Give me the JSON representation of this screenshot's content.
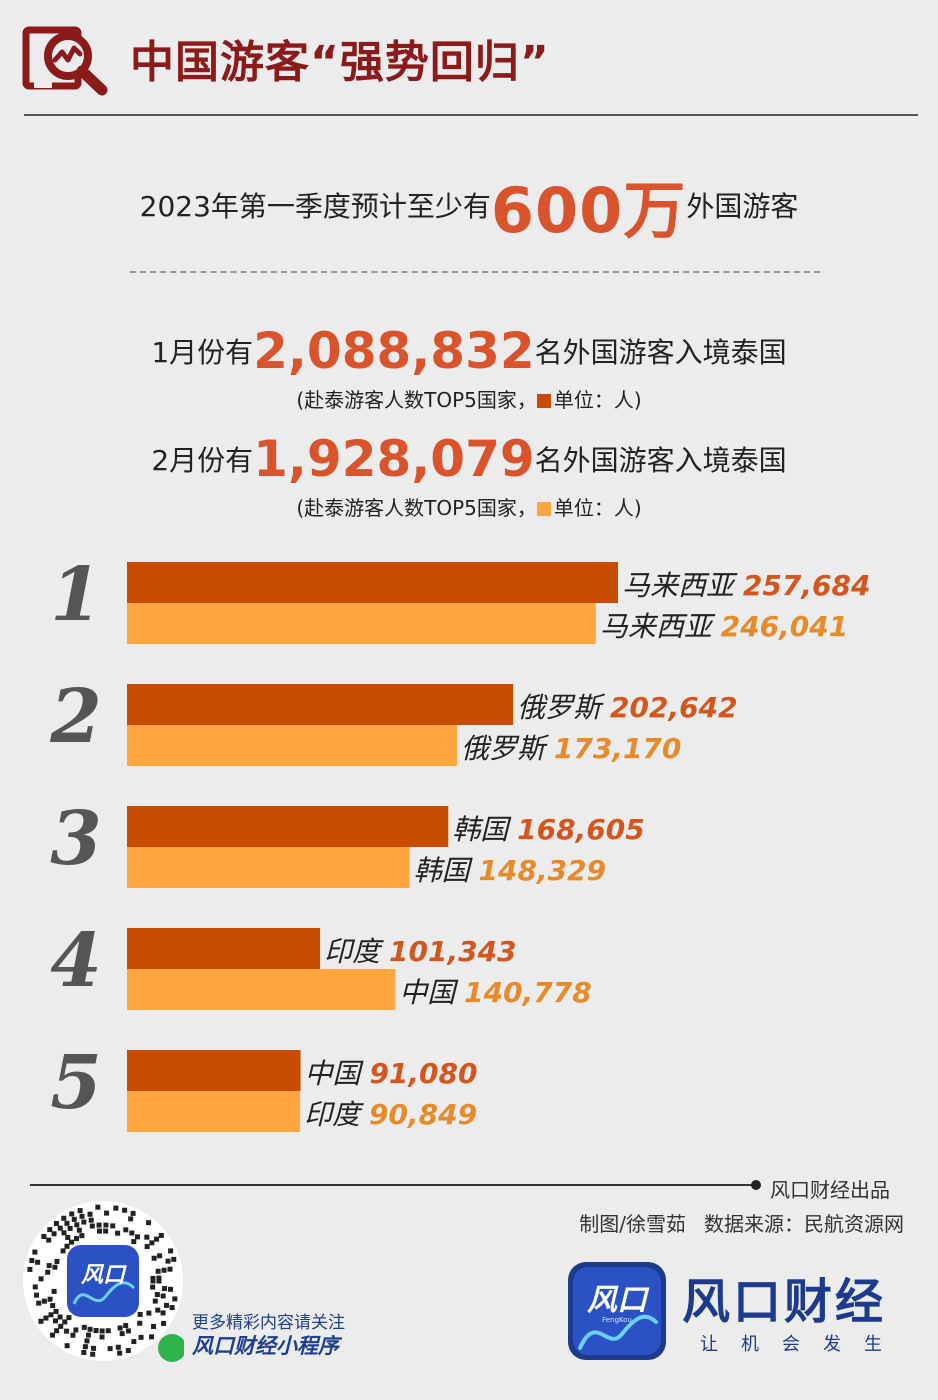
{
  "header": {
    "title": "中国游客“强势回归”",
    "logo_icon": "magnifier-trend-icon"
  },
  "summary": {
    "prefix": "2023年第一季度预计至少有",
    "highlight": "600万",
    "suffix": "外国游客"
  },
  "months": [
    {
      "prefix": "1月份有",
      "highlight": "2,088,832",
      "suffix": "名外国游客入境泰国",
      "note_prefix": "(赴泰游客人数TOP5国家，",
      "note_suffix": "单位：人)",
      "color": "#c84b00"
    },
    {
      "prefix": "2月份有",
      "highlight": "1,928,079",
      "suffix": "名外国游客入境泰国",
      "note_prefix": "(赴泰游客人数TOP5国家，",
      "note_suffix": "单位：人)",
      "color": "#ffa640"
    }
  ],
  "chart_data": {
    "type": "bar",
    "orientation": "horizontal",
    "categories": [
      "1",
      "2",
      "3",
      "4",
      "5"
    ],
    "series": [
      {
        "labels": [
          "马来西亚",
          "俄罗斯",
          "韩国",
          "印度",
          "中国"
        ],
        "values": [
          257684,
          202642,
          168605,
          101343,
          91080
        ],
        "value_labels": [
          "257,684",
          "202,642",
          "168,605",
          "101,343",
          "91,080"
        ],
        "color": "#c84b00",
        "label_color": "#d2561e"
      },
      {
        "labels": [
          "马来西亚",
          "俄罗斯",
          "韩国",
          "中国",
          "印度"
        ],
        "values": [
          246041,
          173170,
          148329,
          140778,
          90849
        ],
        "value_labels": [
          "246,041",
          "173,170",
          "148,329",
          "140,778",
          "90,849"
        ],
        "color": "#ffa640",
        "label_color": "#e68a2a"
      }
    ]
  },
  "footer": {
    "producer": "风口财经出品",
    "credit_author": "制图/徐雪茹",
    "credit_source": "数据来源：民航资源网",
    "qr_icon": "qr-code-icon",
    "follow_text": "更多精彩内容请关注",
    "mini_program": "风口财经小程序",
    "brand_logo_text": "风口",
    "brand_logo_sub": "FengKou",
    "brand_name": "风口财经",
    "slogan": "让机会发生"
  }
}
